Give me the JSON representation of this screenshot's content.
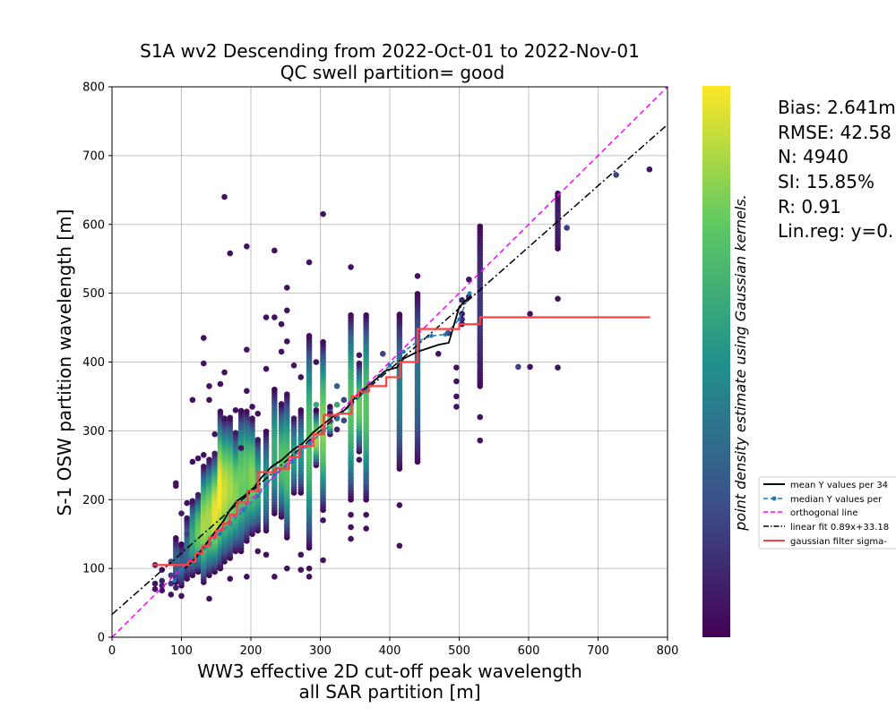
{
  "chart_data": {
    "type": "scatter",
    "title_lines": [
      "S1A wv2 Descending from 2022-Oct-01 to 2022-Nov-01",
      "QC swell partition= good"
    ],
    "xlabel_lines": [
      "WW3 effective 2D cut-off peak wavelength",
      "all SAR partition [m]"
    ],
    "ylabel": "S-1 OSW partition wavelength [m]",
    "xlim": [
      0,
      800
    ],
    "ylim": [
      0,
      800
    ],
    "xticks": [
      0,
      100,
      200,
      300,
      400,
      500,
      600,
      700,
      800
    ],
    "yticks": [
      0,
      100,
      200,
      300,
      400,
      500,
      600,
      700,
      800
    ],
    "grid": true,
    "colorbar_label": "point density estimate using Gaussian kernels.",
    "colormap": [
      "#440154",
      "#3b528b",
      "#21918c",
      "#5ec962",
      "#fde725"
    ],
    "stats_lines": [
      "Bias: 2.641m",
      "RMSE: 42.58",
      "N: 4940",
      "SI: 15.85%",
      "R: 0.91",
      "Lin.reg: y=0."
    ],
    "legend": {
      "placement": "right, outside axes",
      "entries": [
        {
          "label": "mean Y values per 34",
          "style": "solid",
          "color": "#000000",
          "marker": false
        },
        {
          "label": "median Y values per",
          "style": "dashed",
          "color": "#1f77b4",
          "marker": true
        },
        {
          "label": "orthogonal line",
          "style": "dashed",
          "color": "#ff00ff",
          "marker": false
        },
        {
          "label": "linear fit 0.89x+33.18",
          "style": "dashdot",
          "color": "#000000",
          "marker": false
        },
        {
          "label": "gaussian filter sigma-",
          "style": "solid",
          "color": "#ff4040",
          "marker": false
        }
      ]
    },
    "columns": [
      {
        "x": 62,
        "points": [
          [
            62,
            70,
            0.05
          ],
          [
            62,
            105,
            0.1
          ],
          [
            62,
            78,
            0.05
          ]
        ]
      },
      {
        "x": 72,
        "points": [
          [
            72,
            68,
            0.05
          ],
          [
            72,
            75,
            0.1
          ],
          [
            72,
            82,
            0.1
          ],
          [
            72,
            98,
            0.05
          ]
        ]
      },
      {
        "x": 85,
        "points": [
          [
            85,
            62,
            0.05
          ],
          [
            85,
            90,
            0.2
          ],
          [
            85,
            110,
            0.25
          ],
          [
            85,
            78,
            0.15
          ]
        ]
      },
      {
        "x": 92,
        "points": [
          [
            92,
            72,
            0.1
          ],
          [
            92,
            95,
            0.3
          ],
          [
            92,
            220,
            0.05
          ],
          [
            92,
            224,
            0.05
          ]
        ],
        "seg": [
          [
            80,
            145,
            0.3
          ]
        ]
      },
      {
        "x": 100,
        "points": [
          [
            100,
            60,
            0.05
          ],
          [
            100,
            180,
            0.1
          ]
        ],
        "seg": [
          [
            75,
            135,
            0.3
          ]
        ]
      },
      {
        "x": 108,
        "points": [
          [
            108,
            150,
            0.2
          ],
          [
            108,
            195,
            0.05
          ]
        ],
        "seg": [
          [
            85,
            175,
            0.35
          ]
        ]
      },
      {
        "x": 116,
        "points": [
          [
            116,
            345,
            0.05
          ],
          [
            116,
            255,
            0.05
          ]
        ],
        "seg": [
          [
            90,
            200,
            0.6
          ]
        ]
      },
      {
        "x": 124,
        "points": [
          [
            124,
            260,
            0.05
          ]
        ],
        "seg": [
          [
            95,
            210,
            0.75
          ]
        ]
      },
      {
        "x": 132,
        "points": [
          [
            132,
            435,
            0.05
          ],
          [
            132,
            398,
            0.05
          ],
          [
            132,
            265,
            0.05
          ]
        ],
        "seg": [
          [
            80,
            250,
            0.85
          ]
        ]
      },
      {
        "x": 140,
        "points": [
          [
            140,
            56,
            0.05
          ],
          [
            140,
            345,
            0.05
          ],
          [
            140,
            365,
            0.05
          ]
        ],
        "seg": [
          [
            90,
            260,
            0.85
          ]
        ]
      },
      {
        "x": 148,
        "points": [
          [
            148,
            295,
            0.05
          ]
        ],
        "seg": [
          [
            95,
            270,
            0.95
          ]
        ]
      },
      {
        "x": 156,
        "points": [
          [
            156,
            368,
            0.05
          ]
        ],
        "seg": [
          [
            100,
            330,
            1.0
          ]
        ]
      },
      {
        "x": 162,
        "points": [
          [
            162,
            640,
            0.05
          ],
          [
            162,
            385,
            0.05
          ]
        ],
        "seg": [
          [
            110,
            320,
            0.9
          ]
        ]
      },
      {
        "x": 170,
        "points": [
          [
            170,
            558,
            0.05
          ],
          [
            170,
            85,
            0.05
          ]
        ],
        "seg": [
          [
            115,
            320,
            0.85
          ]
        ]
      },
      {
        "x": 178,
        "points": [
          [
            178,
            330,
            0.05
          ]
        ],
        "seg": [
          [
            125,
            300,
            0.8
          ]
        ]
      },
      {
        "x": 186,
        "points": [
          [
            186,
            275,
            0.05
          ]
        ],
        "seg": [
          [
            125,
            330,
            0.75
          ]
        ]
      },
      {
        "x": 194,
        "points": [
          [
            194,
            568,
            0.05
          ],
          [
            194,
            418,
            0.05
          ],
          [
            194,
            358,
            0.05
          ],
          [
            194,
            88,
            0.05
          ]
        ],
        "seg": [
          [
            140,
            330,
            0.75
          ]
        ]
      },
      {
        "x": 202,
        "points": [
          [
            202,
            335,
            0.05
          ]
        ],
        "seg": [
          [
            150,
            320,
            0.8
          ]
        ]
      },
      {
        "x": 210,
        "points": [
          [
            210,
            325,
            0.05
          ],
          [
            210,
            125,
            0.05
          ]
        ],
        "seg": [
          [
            155,
            290,
            0.65
          ]
        ]
      },
      {
        "x": 222,
        "points": [
          [
            222,
            465,
            0.05
          ],
          [
            222,
            390,
            0.05
          ],
          [
            222,
            120,
            0.05
          ]
        ],
        "seg": [
          [
            155,
            300,
            0.5
          ]
        ]
      },
      {
        "x": 234,
        "points": [
          [
            234,
            465,
            0.05
          ],
          [
            234,
            562,
            0.05
          ],
          [
            234,
            88,
            0.05
          ]
        ],
        "seg": [
          [
            180,
            360,
            0.6
          ]
        ]
      },
      {
        "x": 244,
        "points": [
          [
            244,
            415,
            0.05
          ],
          [
            244,
            455,
            0.05
          ]
        ],
        "seg": [
          [
            175,
            340,
            0.7
          ]
        ]
      },
      {
        "x": 252,
        "points": [
          [
            252,
            508,
            0.05
          ],
          [
            252,
            475,
            0.05
          ],
          [
            252,
            430,
            0.05
          ],
          [
            252,
            100,
            0.05
          ]
        ],
        "seg": [
          [
            145,
            355,
            0.7
          ]
        ]
      },
      {
        "x": 262,
        "points": [
          [
            262,
            395,
            0.05
          ]
        ],
        "seg": [
          [
            210,
            320,
            0.55
          ]
        ]
      },
      {
        "x": 272,
        "points": [
          [
            272,
            378,
            0.05
          ],
          [
            272,
            120,
            0.05
          ],
          [
            272,
            98,
            0.05
          ]
        ],
        "seg": [
          [
            210,
            330,
            0.5
          ]
        ]
      },
      {
        "x": 284,
        "points": [
          [
            284,
            545,
            0.05
          ],
          [
            284,
            88,
            0.05
          ],
          [
            284,
            100,
            0.05
          ]
        ],
        "seg": [
          [
            130,
            440,
            0.7
          ]
        ]
      },
      {
        "x": 294,
        "points": [
          [
            294,
            400,
            0.05
          ],
          [
            294,
            338,
            0.6
          ]
        ],
        "seg": [
          [
            250,
            330,
            0.85
          ]
        ]
      },
      {
        "x": 304,
        "points": [
          [
            304,
            615,
            0.05
          ],
          [
            304,
            112,
            0.05
          ],
          [
            304,
            170,
            0.05
          ]
        ],
        "seg": [
          [
            185,
            430,
            0.8
          ]
        ]
      },
      {
        "x": 314,
        "points": [
          [
            314,
            325,
            0.05
          ]
        ],
        "seg": [
          [
            295,
            335,
            0.8
          ]
        ]
      },
      {
        "x": 324,
        "points": [
          [
            324,
            365,
            0.3
          ],
          [
            324,
            338,
            0.6
          ],
          [
            324,
            318,
            0.4
          ],
          [
            324,
            302,
            0.1
          ]
        ]
      },
      {
        "x": 334,
        "points": [
          [
            334,
            345,
            0.2
          ],
          [
            334,
            315,
            0.2
          ]
        ]
      },
      {
        "x": 344,
        "points": [
          [
            344,
            538,
            0.05
          ],
          [
            344,
            143,
            0.05
          ],
          [
            344,
            160,
            0.05
          ],
          [
            344,
            178,
            0.05
          ]
        ],
        "seg": [
          [
            200,
            470,
            0.7
          ]
        ]
      },
      {
        "x": 356,
        "points": [
          [
            356,
            410,
            0.05
          ],
          [
            356,
            258,
            0.05
          ]
        ],
        "seg": [
          [
            270,
            400,
            0.75
          ]
        ]
      },
      {
        "x": 366,
        "points": [
          [
            366,
            158,
            0.05
          ],
          [
            366,
            178,
            0.05
          ]
        ],
        "seg": [
          [
            200,
            470,
            0.7
          ]
        ]
      },
      {
        "x": 390,
        "points": [
          [
            390,
            412,
            0.2
          ]
        ]
      },
      {
        "x": 414,
        "points": [
          [
            414,
            133,
            0.05
          ],
          [
            414,
            192,
            0.05
          ]
        ],
        "seg": [
          [
            245,
            470,
            0.4
          ]
        ]
      },
      {
        "x": 440,
        "points": [
          [
            440,
            525,
            0.05
          ]
        ],
        "seg": [
          [
            255,
            500,
            0.35
          ]
        ]
      },
      {
        "x": 470,
        "points": [
          [
            470,
            412,
            0.05
          ]
        ]
      },
      {
        "x": 484,
        "points": [
          [
            484,
            442,
            0.2
          ]
        ]
      },
      {
        "x": 496,
        "points": [
          [
            496,
            335,
            0.05
          ],
          [
            496,
            350,
            0.05
          ],
          [
            496,
            372,
            0.05
          ],
          [
            496,
            392,
            0.05
          ]
        ]
      },
      {
        "x": 504,
        "points": [
          [
            504,
            462,
            0.1
          ],
          [
            504,
            490,
            0.1
          ],
          [
            504,
            470,
            0.05
          ],
          [
            504,
            455,
            0.05
          ]
        ]
      },
      {
        "x": 514,
        "points": [
          [
            514,
            495,
            0.05
          ],
          [
            514,
            520,
            0.05
          ]
        ]
      },
      {
        "x": 530,
        "points": [
          [
            530,
            286,
            0.05
          ],
          [
            530,
            320,
            0.05
          ]
        ],
        "seg": [
          [
            365,
            600,
            0.15
          ]
        ]
      },
      {
        "x": 585,
        "points": [
          [
            585,
            393,
            0.2
          ]
        ]
      },
      {
        "x": 602,
        "points": [
          [
            602,
            393,
            0.05
          ],
          [
            602,
            470,
            0.05
          ]
        ]
      },
      {
        "x": 642,
        "points": [
          [
            642,
            392,
            0.05
          ],
          [
            642,
            492,
            0.05
          ]
        ],
        "seg": [
          [
            565,
            648,
            0.08
          ]
        ]
      },
      {
        "x": 655,
        "points": [
          [
            655,
            595,
            0.2
          ]
        ]
      },
      {
        "x": 726,
        "points": [
          [
            726,
            672,
            0.2
          ]
        ]
      },
      {
        "x": 774,
        "points": [
          [
            774,
            680,
            0.05
          ]
        ]
      }
    ],
    "series_mean": {
      "x": [
        105,
        120,
        130,
        140,
        150,
        160,
        170,
        180,
        190,
        205,
        215,
        230,
        245,
        260,
        275,
        290,
        305,
        320,
        335,
        350,
        365,
        380,
        395,
        410,
        420,
        440,
        455,
        470,
        485,
        500,
        515
      ],
      "y": [
        100,
        115,
        128,
        142,
        155,
        168,
        185,
        198,
        205,
        218,
        232,
        248,
        258,
        272,
        282,
        298,
        310,
        322,
        330,
        348,
        362,
        375,
        388,
        392,
        405,
        415,
        420,
        425,
        428,
        480,
        495
      ]
    },
    "series_median": {
      "x": [
        90,
        100,
        110,
        125,
        140,
        155,
        170,
        190,
        210,
        235,
        260,
        285,
        305,
        325,
        345,
        365,
        385,
        400,
        420,
        440,
        460,
        480,
        500,
        515
      ],
      "y": [
        82,
        98,
        108,
        118,
        135,
        150,
        165,
        185,
        205,
        238,
        255,
        282,
        300,
        320,
        338,
        358,
        380,
        395,
        415,
        430,
        438,
        440,
        462,
        500
      ]
    },
    "series_gaussian_steps": {
      "x": [
        58,
        80,
        105,
        110,
        120,
        130,
        140,
        150,
        160,
        170,
        180,
        195,
        210,
        235,
        255,
        270,
        290,
        305,
        325,
        345,
        355,
        370,
        395,
        415,
        440,
        500,
        530,
        775
      ],
      "y": [
        105,
        105,
        105,
        110,
        122,
        133,
        145,
        155,
        165,
        178,
        196,
        213,
        240,
        245,
        262,
        278,
        295,
        323,
        325,
        350,
        357,
        365,
        378,
        400,
        448,
        455,
        465,
        465
      ]
    },
    "linear_fit": {
      "slope": 0.89,
      "intercept": 33.18
    }
  }
}
